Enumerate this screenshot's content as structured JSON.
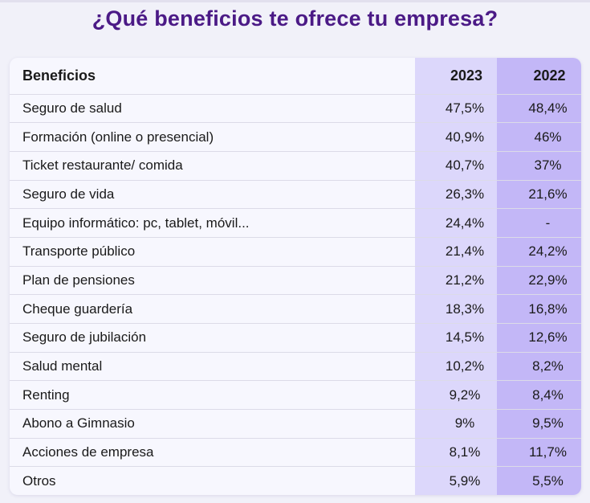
{
  "title": "¿Qué beneficios te ofrece tu empresa?",
  "table": {
    "headers": {
      "label": "Beneficios",
      "year_a": "2023",
      "year_b": "2022"
    },
    "rows": [
      {
        "label": "Seguro de salud",
        "y2023": "47,5%",
        "y2022": "48,4%"
      },
      {
        "label": "Formación (online o presencial)",
        "y2023": "40,9%",
        "y2022": "46%"
      },
      {
        "label": "Ticket restaurante/ comida",
        "y2023": "40,7%",
        "y2022": "37%"
      },
      {
        "label": "Seguro de vida",
        "y2023": "26,3%",
        "y2022": "21,6%"
      },
      {
        "label": "Equipo informático: pc, tablet, móvil...",
        "y2023": "24,4%",
        "y2022": "-"
      },
      {
        "label": "Transporte público",
        "y2023": "21,4%",
        "y2022": "24,2%"
      },
      {
        "label": "Plan de pensiones",
        "y2023": "21,2%",
        "y2022": "22,9%"
      },
      {
        "label": "Cheque guardería",
        "y2023": "18,3%",
        "y2022": "16,8%"
      },
      {
        "label": "Seguro de jubilación",
        "y2023": "14,5%",
        "y2022": "12,6%"
      },
      {
        "label": "Salud mental",
        "y2023": "10,2%",
        "y2022": "8,2%"
      },
      {
        "label": "Renting",
        "y2023": "9,2%",
        "y2022": "8,4%"
      },
      {
        "label": "Abono a Gimnasio",
        "y2023": "9%",
        "y2022": "9,5%"
      },
      {
        "label": "Acciones de empresa",
        "y2023": "8,1%",
        "y2022": "11,7%"
      },
      {
        "label": "Otros",
        "y2023": "5,9%",
        "y2022": "5,5%"
      }
    ]
  },
  "colors": {
    "title": "#4b1a86",
    "col_2023_bg": "#dcd7fb",
    "col_2022_bg": "#c3b7f7",
    "page_bg": "#f1f1f9"
  }
}
